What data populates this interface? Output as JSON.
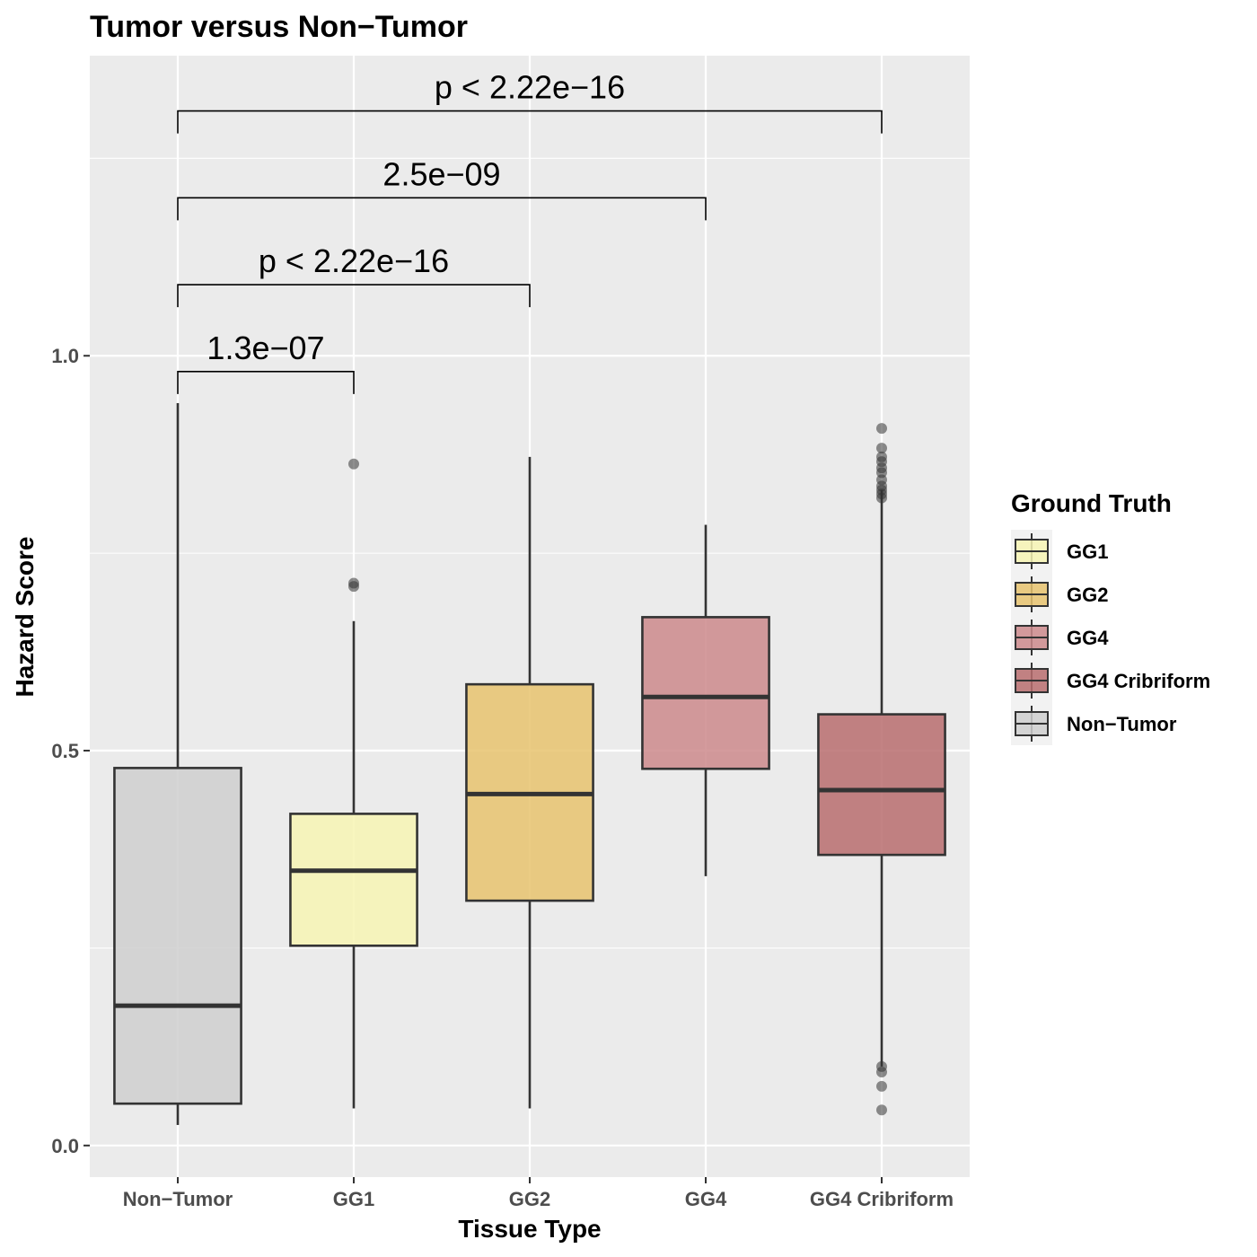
{
  "chart_data": {
    "type": "box",
    "title": "Tumor versus Non−Tumor",
    "xlabel": "Tissue Type",
    "ylabel": "Hazard Score",
    "ylim": [
      -0.04,
      1.38
    ],
    "y_ticks": [
      0.0,
      0.5,
      1.0
    ],
    "y_tick_labels": [
      "0.0",
      "0.5",
      "1.0"
    ],
    "grid": true,
    "panel_background": "#ebebeb",
    "grid_color": "#ffffff",
    "categories": [
      "Non−Tumor",
      "GG1",
      "GG2",
      "GG4",
      "GG4 Cribriform"
    ],
    "series": [
      {
        "name": "Non−Tumor",
        "category": "Non−Tumor",
        "color": "#cfcfcf",
        "q1": 0.053,
        "median": 0.177,
        "q3": 0.478,
        "whisker_low": 0.026,
        "whisker_high": 0.94,
        "outliers": []
      },
      {
        "name": "GG1",
        "category": "GG1",
        "color": "#f7f4b4",
        "q1": 0.253,
        "median": 0.348,
        "q3": 0.42,
        "whisker_low": 0.047,
        "whisker_high": 0.664,
        "outliers": [
          0.863,
          0.712,
          0.708
        ]
      },
      {
        "name": "GG2",
        "category": "GG2",
        "color": "#e8c36f",
        "q1": 0.31,
        "median": 0.445,
        "q3": 0.584,
        "whisker_low": 0.047,
        "whisker_high": 0.872,
        "outliers": []
      },
      {
        "name": "GG4",
        "category": "GG4",
        "color": "#cd8a8c",
        "q1": 0.477,
        "median": 0.568,
        "q3": 0.669,
        "whisker_low": 0.341,
        "whisker_high": 0.786,
        "outliers": []
      },
      {
        "name": "GG4 Cribriform",
        "category": "GG4 Cribriform",
        "color": "#b96d6e",
        "q1": 0.368,
        "median": 0.45,
        "q3": 0.546,
        "whisker_low": 0.1,
        "whisker_high": 0.83,
        "outliers": [
          0.908,
          0.883,
          0.872,
          0.866,
          0.858,
          0.852,
          0.843,
          0.835,
          0.83,
          0.825,
          0.82,
          0.1,
          0.093,
          0.075,
          0.045
        ]
      }
    ],
    "comparisons": [
      {
        "from": "Non−Tumor",
        "to": "GG1",
        "label": "1.3e−07",
        "y": 0.98
      },
      {
        "from": "Non−Tumor",
        "to": "GG2",
        "label": "p < 2.22e−16",
        "y": 1.09
      },
      {
        "from": "Non−Tumor",
        "to": "GG4",
        "label": "2.5e−09",
        "y": 1.2
      },
      {
        "from": "Non−Tumor",
        "to": "GG4 Cribriform",
        "label": "p < 2.22e−16",
        "y": 1.31
      }
    ],
    "legend": {
      "title": "Ground Truth",
      "position": "right",
      "entries": [
        {
          "label": "GG1",
          "color": "#f7f4b4"
        },
        {
          "label": "GG2",
          "color": "#e8c36f"
        },
        {
          "label": "GG4",
          "color": "#cd8a8c"
        },
        {
          "label": "GG4 Cribriform",
          "color": "#b96d6e"
        },
        {
          "label": "Non−Tumor",
          "color": "#cfcfcf"
        }
      ]
    }
  }
}
